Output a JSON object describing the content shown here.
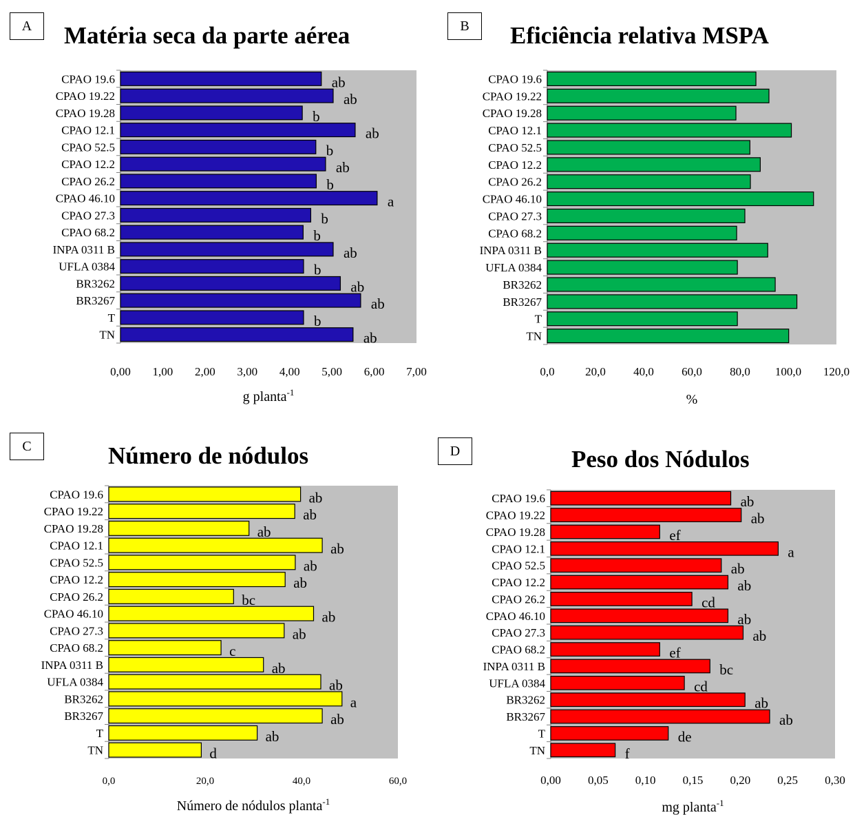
{
  "colors": {
    "plot_background": "#c0c0c0",
    "bar_outline": "#000000"
  },
  "chart_data": [
    {
      "type": "bar",
      "orientation": "horizontal",
      "panel_label": "A",
      "title": "Matéria seca da parte aérea",
      "xlabel": "g planta",
      "xlabel_sup": "-1",
      "categories": [
        "CPAO 19.6",
        "CPAO 19.22",
        "CPAO 19.28",
        "CPAO 12.1",
        "CPAO 52.5",
        "CPAO 12.2",
        "CPAO 26.2",
        "CPAO 46.10",
        "CPAO 27.3",
        "CPAO 68.2",
        "INPA 0311 B",
        "UFLA 0384",
        "BR3262",
        "BR3267",
        "T",
        "TN"
      ],
      "values": [
        4.75,
        5.03,
        4.3,
        5.55,
        4.62,
        4.85,
        4.63,
        6.07,
        4.5,
        4.32,
        5.03,
        4.33,
        5.2,
        5.68,
        4.33,
        5.5
      ],
      "significance": [
        "ab",
        "ab",
        "b",
        "ab",
        "b",
        "ab",
        "b",
        "a",
        "b",
        "b",
        "ab",
        "b",
        "ab",
        "ab",
        "b",
        "ab"
      ],
      "xlim": [
        0,
        7
      ],
      "xticks": [
        "0,00",
        "1,00",
        "2,00",
        "3,00",
        "4,00",
        "5,00",
        "6,00",
        "7,00"
      ],
      "bar_color": "#2010b0",
      "grid": false
    },
    {
      "type": "bar",
      "orientation": "horizontal",
      "panel_label": "B",
      "title": "Eficiência relativa MSPA",
      "xlabel": "%",
      "xlabel_sup": "",
      "categories": [
        "CPAO 19.6",
        "CPAO 19.22",
        "CPAO 19.28",
        "CPAO 12.1",
        "CPAO 52.5",
        "CPAO 12.2",
        "CPAO 26.2",
        "CPAO 46.10",
        "CPAO 27.3",
        "CPAO 68.2",
        "INPA 0311 B",
        "UFLA 0384",
        "BR3262",
        "BR3267",
        "T",
        "TN"
      ],
      "values": [
        86.6,
        92.0,
        78.3,
        101.3,
        84.1,
        88.4,
        84.3,
        110.5,
        82.0,
        78.6,
        91.5,
        78.9,
        94.6,
        103.6,
        78.9,
        100.2
      ],
      "significance": [],
      "xlim": [
        0,
        120
      ],
      "xticks": [
        "0,0",
        "20,0",
        "40,0",
        "60,0",
        "80,0",
        "100,0",
        "120,0"
      ],
      "bar_color": "#00b050",
      "grid": false
    },
    {
      "type": "bar",
      "orientation": "horizontal",
      "panel_label": "C",
      "title": "Número de nódulos",
      "xlabel": "Número de nódulos planta",
      "xlabel_sup": "-1",
      "categories": [
        "CPAO 19.6",
        "CPAO 19.22",
        "CPAO 19.28",
        "CPAO 12.1",
        "CPAO 52.5",
        "CPAO 12.2",
        "CPAO 26.2",
        "CPAO 46.10",
        "CPAO 27.3",
        "CPAO 68.2",
        "INPA 0311 B",
        "UFLA 0384",
        "BR3262",
        "BR3267",
        "T",
        "TN"
      ],
      "values": [
        39.8,
        38.6,
        29.1,
        44.3,
        38.7,
        36.6,
        25.9,
        42.5,
        36.4,
        23.3,
        32.1,
        44.0,
        48.4,
        44.3,
        30.8,
        19.2
      ],
      "significance": [
        "ab",
        "ab",
        "ab",
        "ab",
        "ab",
        "ab",
        "bc",
        "ab",
        "ab",
        "c",
        "ab",
        "ab",
        "a",
        "ab",
        "ab",
        "d"
      ],
      "xlim": [
        0,
        60
      ],
      "xticks": [
        "0,0",
        "20,0",
        "40,0",
        "60,0"
      ],
      "bar_color": "#ffff00",
      "grid": false
    },
    {
      "type": "bar",
      "orientation": "horizontal",
      "panel_label": "D",
      "title": "Peso dos Nódulos",
      "xlabel": "mg planta",
      "xlabel_sup": "-1",
      "categories": [
        "CPAO 19.6",
        "CPAO 19.22",
        "CPAO 19.28",
        "CPAO 12.1",
        "CPAO 52.5",
        "CPAO 12.2",
        "CPAO 26.2",
        "CPAO 46.10",
        "CPAO 27.3",
        "CPAO 68.2",
        "INPA 0311 B",
        "UFLA 0384",
        "BR3262",
        "BR3267",
        "T",
        "TN"
      ],
      "values": [
        0.19,
        0.201,
        0.115,
        0.24,
        0.18,
        0.187,
        0.149,
        0.187,
        0.203,
        0.115,
        0.168,
        0.141,
        0.205,
        0.231,
        0.124,
        0.068
      ],
      "significance": [
        "ab",
        "ab",
        "ef",
        "a",
        "ab",
        "ab",
        "cd",
        "ab",
        "ab",
        "ef",
        "bc",
        "cd",
        "ab",
        "ab",
        "de",
        "f"
      ],
      "xlim": [
        0,
        0.3
      ],
      "xticks": [
        "0,00",
        "0,05",
        "0,10",
        "0,15",
        "0,20",
        "0,25",
        "0,30"
      ],
      "bar_color": "#ff0000",
      "grid": false
    }
  ]
}
